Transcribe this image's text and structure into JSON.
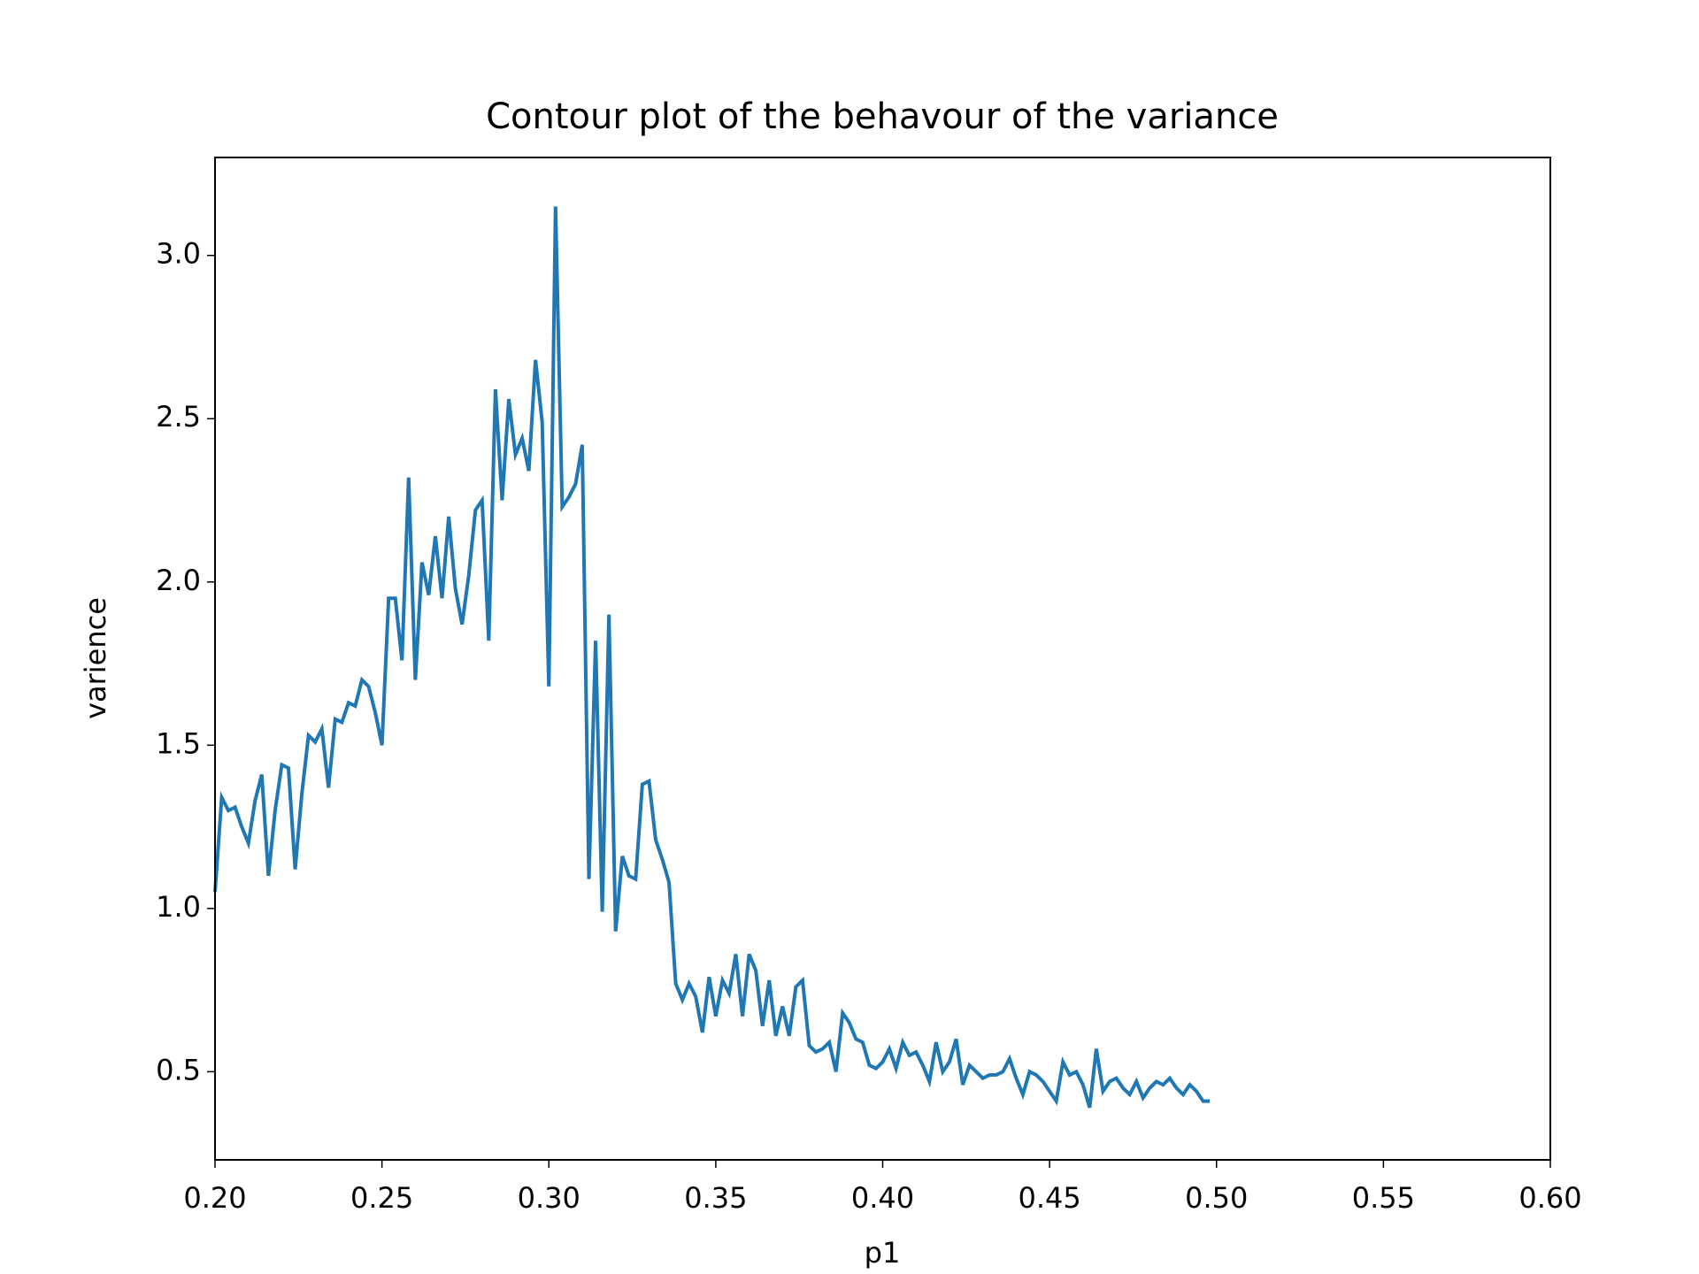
{
  "chart_data": {
    "type": "line",
    "title": "Contour plot of the behavour of the variance",
    "xlabel": "p1",
    "ylabel": "varience",
    "color": "#1f77b4",
    "x": [
      0.2,
      0.202,
      0.204,
      0.206,
      0.208,
      0.21,
      0.212,
      0.214,
      0.216,
      0.218,
      0.22,
      0.222,
      0.224,
      0.226,
      0.228,
      0.23,
      0.232,
      0.234,
      0.236,
      0.238,
      0.24,
      0.242,
      0.244,
      0.246,
      0.248,
      0.25,
      0.252,
      0.254,
      0.256,
      0.258,
      0.26,
      0.262,
      0.264,
      0.266,
      0.268,
      0.27,
      0.272,
      0.274,
      0.276,
      0.278,
      0.28,
      0.282,
      0.284,
      0.286,
      0.288,
      0.29,
      0.292,
      0.294,
      0.296,
      0.298,
      0.3,
      0.302,
      0.304,
      0.306,
      0.308,
      0.31,
      0.312,
      0.314,
      0.316,
      0.318,
      0.32,
      0.322,
      0.324,
      0.326,
      0.328,
      0.33,
      0.332,
      0.334,
      0.336,
      0.338,
      0.34,
      0.342,
      0.344,
      0.346,
      0.348,
      0.35,
      0.352,
      0.354,
      0.356,
      0.358,
      0.36,
      0.362,
      0.364,
      0.366,
      0.368,
      0.37,
      0.372,
      0.374,
      0.376,
      0.378,
      0.38,
      0.382,
      0.384,
      0.386,
      0.388,
      0.39,
      0.392,
      0.394,
      0.396,
      0.398,
      0.4,
      0.402,
      0.404,
      0.406,
      0.408,
      0.41,
      0.412,
      0.414,
      0.416,
      0.418,
      0.42,
      0.422,
      0.424,
      0.426,
      0.428,
      0.43,
      0.432,
      0.434,
      0.436,
      0.438,
      0.44,
      0.442,
      0.444,
      0.446,
      0.448,
      0.45,
      0.452,
      0.454,
      0.456,
      0.458,
      0.46,
      0.462,
      0.464,
      0.466,
      0.468,
      0.47,
      0.472,
      0.474,
      0.476,
      0.478,
      0.48,
      0.482,
      0.484,
      0.486,
      0.488,
      0.49,
      0.492,
      0.494,
      0.496,
      0.498
    ],
    "values": [
      1.05,
      1.34,
      1.3,
      1.31,
      1.25,
      1.2,
      1.33,
      1.41,
      1.1,
      1.3,
      1.44,
      1.43,
      1.12,
      1.35,
      1.53,
      1.51,
      1.55,
      1.37,
      1.58,
      1.57,
      1.63,
      1.62,
      1.7,
      1.68,
      1.6,
      1.5,
      1.95,
      1.95,
      1.76,
      2.32,
      1.7,
      2.06,
      1.96,
      2.14,
      1.95,
      2.2,
      1.98,
      1.87,
      2.02,
      2.22,
      2.25,
      1.82,
      2.59,
      2.25,
      2.56,
      2.39,
      2.44,
      2.34,
      2.68,
      2.49,
      1.68,
      3.15,
      2.23,
      2.26,
      2.3,
      2.42,
      1.09,
      1.82,
      0.99,
      1.9,
      0.93,
      1.16,
      1.1,
      1.09,
      1.38,
      1.39,
      1.21,
      1.15,
      1.08,
      0.77,
      0.72,
      0.77,
      0.73,
      0.62,
      0.79,
      0.67,
      0.78,
      0.74,
      0.86,
      0.67,
      0.86,
      0.81,
      0.64,
      0.78,
      0.61,
      0.7,
      0.61,
      0.76,
      0.78,
      0.58,
      0.56,
      0.57,
      0.59,
      0.5,
      0.68,
      0.65,
      0.6,
      0.59,
      0.52,
      0.51,
      0.53,
      0.57,
      0.51,
      0.59,
      0.55,
      0.56,
      0.52,
      0.47,
      0.59,
      0.5,
      0.53,
      0.6,
      0.46,
      0.52,
      0.5,
      0.48,
      0.49,
      0.49,
      0.5,
      0.54,
      0.48,
      0.43,
      0.5,
      0.49,
      0.47,
      0.44,
      0.41,
      0.53,
      0.49,
      0.5,
      0.46,
      0.39,
      0.57,
      0.44,
      0.47,
      0.48,
      0.45,
      0.43,
      0.47,
      0.42,
      0.45,
      0.47,
      0.46,
      0.48,
      0.45,
      0.43,
      0.46,
      0.44,
      0.41,
      0.41
    ],
    "xlim": [
      0.2,
      0.6
    ],
    "xticks": [
      {
        "value": 0.2,
        "label": "0.20"
      },
      {
        "value": 0.25,
        "label": "0.25"
      },
      {
        "value": 0.3,
        "label": "0.30"
      },
      {
        "value": 0.35,
        "label": "0.35"
      },
      {
        "value": 0.4,
        "label": "0.40"
      },
      {
        "value": 0.45,
        "label": "0.45"
      },
      {
        "value": 0.5,
        "label": "0.50"
      },
      {
        "value": 0.55,
        "label": "0.55"
      },
      {
        "value": 0.6,
        "label": "0.60"
      }
    ],
    "ylim": [
      0.23,
      3.3
    ],
    "yticks": [
      0.5,
      {
        "value": 1,
        "label": "1.0"
      },
      1.5,
      {
        "value": 2,
        "label": "2.0"
      },
      2.5,
      {
        "value": 3,
        "label": "3.0"
      }
    ]
  }
}
